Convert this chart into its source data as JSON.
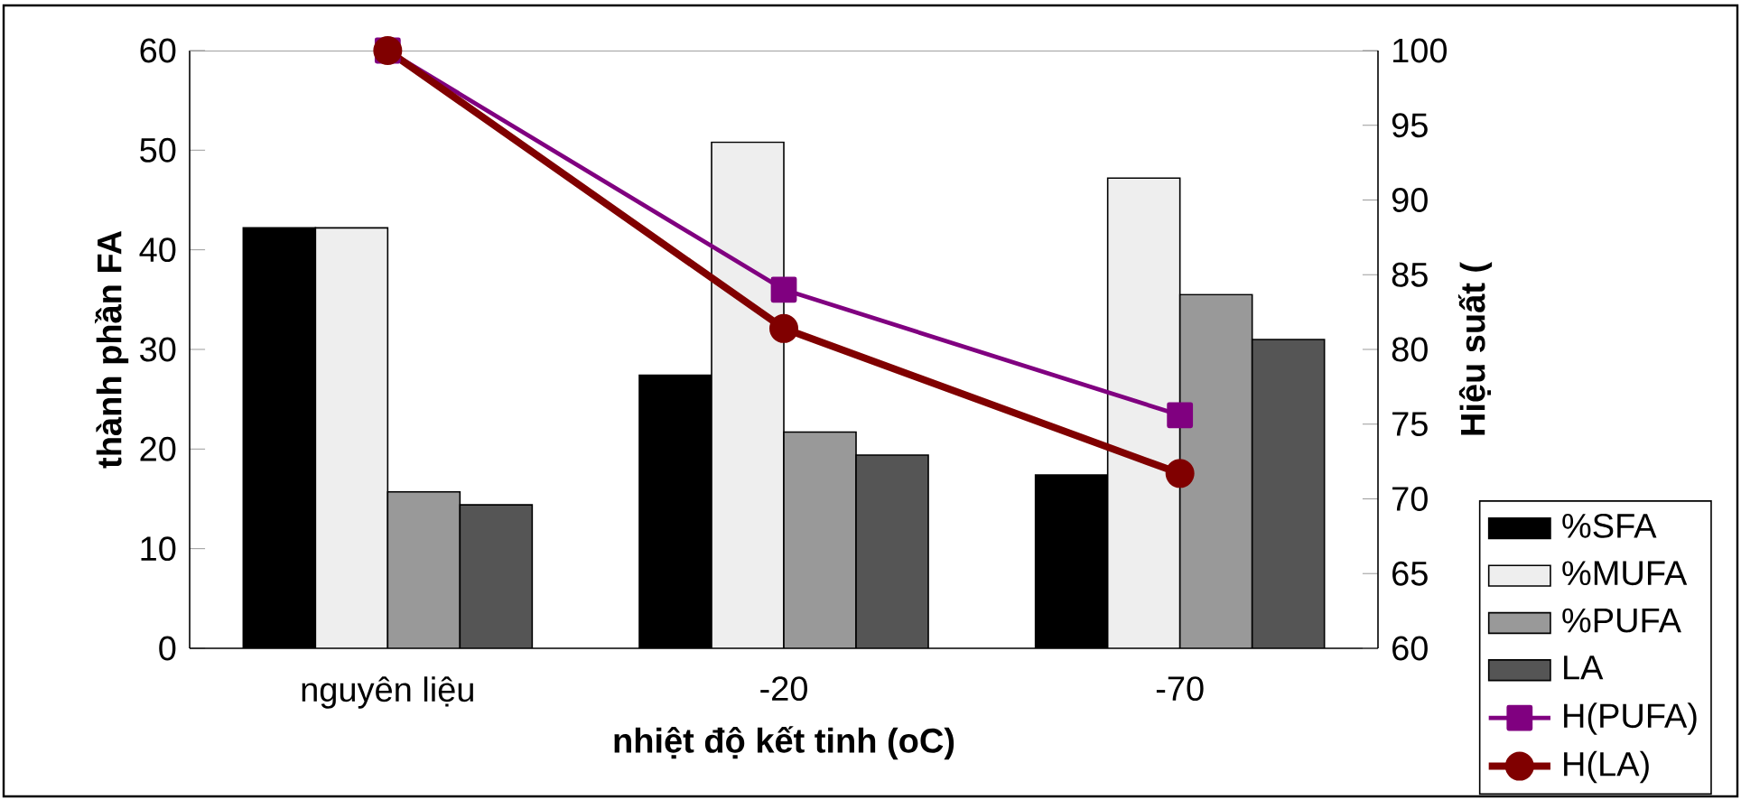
{
  "chart_data": {
    "type": "bar",
    "xlabel": "nhiệt độ kết tinh (oC)",
    "ylabel": "thành phần FA",
    "y2label": "Hiệu suất (",
    "categories": [
      "nguyên liệu",
      "-20",
      "-70"
    ],
    "series": [
      {
        "name": "%SFA",
        "color": "#000000",
        "values": [
          42.2,
          27.4,
          17.4
        ]
      },
      {
        "name": "%MUFA",
        "color": "#eeeeee",
        "values": [
          42.2,
          50.8,
          47.2
        ]
      },
      {
        "name": "%PUFA",
        "color": "#999999",
        "values": [
          15.7,
          21.7,
          35.5
        ]
      },
      {
        "name": "LA",
        "color": "#555555",
        "values": [
          14.4,
          19.4,
          31.0
        ]
      },
      {
        "name": "H(PUFA)",
        "type": "line",
        "axis": "y2",
        "marker": "square",
        "color": "#800080",
        "values": [
          100,
          84.0,
          75.6
        ]
      },
      {
        "name": "H(LA)",
        "type": "line",
        "axis": "y2",
        "marker": "circle",
        "color": "#800000",
        "values": [
          100,
          81.4,
          71.7
        ]
      }
    ],
    "ylim": [
      0,
      60
    ],
    "yticks": [
      0,
      10,
      20,
      30,
      40,
      50,
      60
    ],
    "y2lim": [
      60,
      100
    ],
    "y2ticks": [
      60,
      65,
      70,
      75,
      80,
      85,
      90,
      95,
      100
    ],
    "legend": "bottom right",
    "grid": false
  }
}
